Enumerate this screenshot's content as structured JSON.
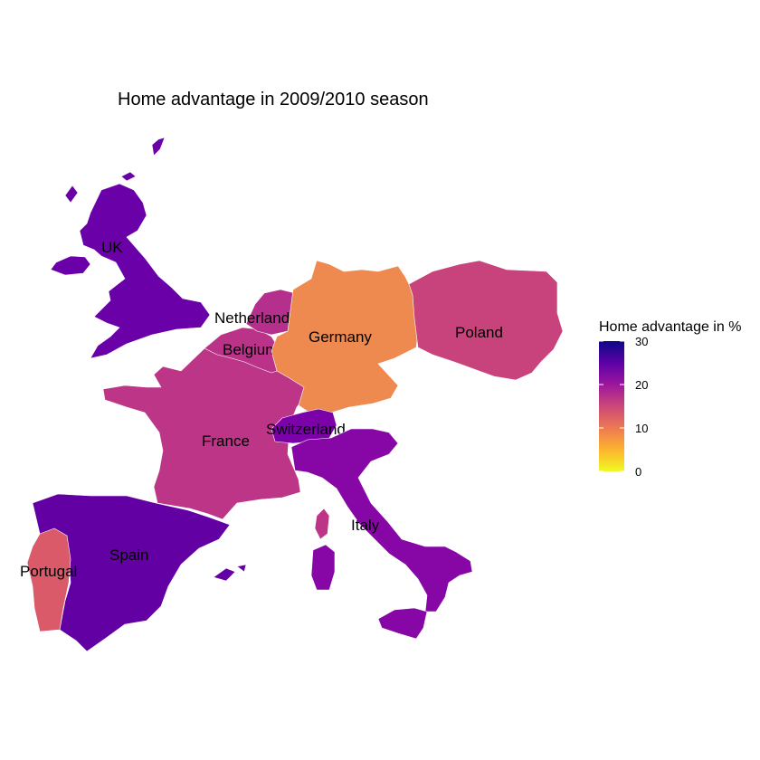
{
  "title": "Home advantage in 2009/2010 season",
  "legend": {
    "title": "Home advantage in %",
    "ticks": [
      {
        "value": 30,
        "label": "30"
      },
      {
        "value": 20,
        "label": "20"
      },
      {
        "value": 10,
        "label": "10"
      },
      {
        "value": 0,
        "label": "0"
      }
    ],
    "range": [
      0,
      30
    ],
    "palette": [
      "#F0F921",
      "#FDB42F",
      "#ED7953",
      "#CC4778",
      "#9C179E",
      "#5C01A6",
      "#0D0887"
    ]
  },
  "regions": [
    {
      "id": "uk",
      "name": "UK",
      "home_advantage": 26,
      "color": "#6A00A8"
    },
    {
      "id": "netherlands",
      "name": "Netherlands",
      "home_advantage": 19,
      "color": "#B52F8C"
    },
    {
      "id": "belgium",
      "name": "Belgium",
      "home_advantage": 18,
      "color": "#BA3388"
    },
    {
      "id": "germany",
      "name": "Germany",
      "home_advantage": 10,
      "color": "#EE8A4F"
    },
    {
      "id": "poland",
      "name": "Poland",
      "home_advantage": 15,
      "color": "#C8437B"
    },
    {
      "id": "france",
      "name": "France",
      "home_advantage": 18,
      "color": "#BC3587"
    },
    {
      "id": "switzerland",
      "name": "Switzerland",
      "home_advantage": 25,
      "color": "#7A02A8"
    },
    {
      "id": "italy",
      "name": "Italy",
      "home_advantage": 23,
      "color": "#8707A6"
    },
    {
      "id": "spain",
      "name": "Spain",
      "home_advantage": 27,
      "color": "#6200A4"
    },
    {
      "id": "portugal",
      "name": "Portugal",
      "home_advantage": 13,
      "color": "#DA5A6A"
    }
  ]
}
